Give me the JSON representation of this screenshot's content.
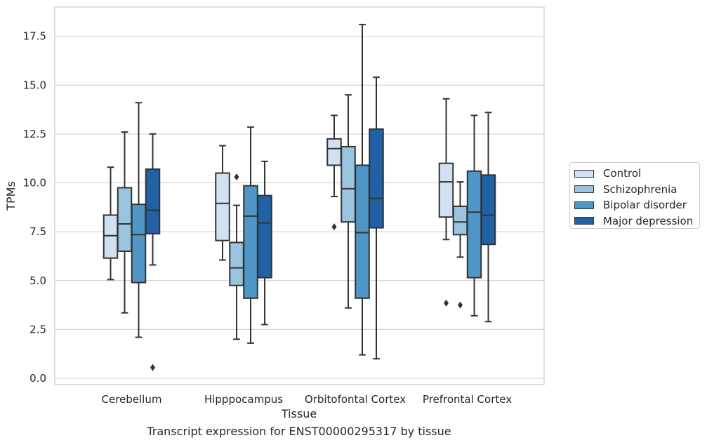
{
  "chart_data": {
    "type": "box",
    "xlabel": "Tissue",
    "ylabel": "TPMs",
    "caption": "Transcript expression for ENST00000295317 by tissue",
    "ylim": [
      -0.3,
      19.0
    ],
    "yticks": [
      0.0,
      2.5,
      5.0,
      7.5,
      10.0,
      12.5,
      15.0,
      17.5
    ],
    "ytick_labels": [
      "0.0",
      "2.5",
      "5.0",
      "7.5",
      "10.0",
      "12.5",
      "15.0",
      "17.5"
    ],
    "grid": "horizontal",
    "legend_position": "right",
    "categories": [
      "Cerebellum",
      "Hipppocampus",
      "Orbitofontal Cortex",
      "Prefrontal Cortex"
    ],
    "series": [
      {
        "name": "Control",
        "color": "#d1e1f1",
        "boxes": [
          {
            "whisker_low": 5.05,
            "q1": 6.15,
            "median": 7.3,
            "q3": 8.35,
            "whisker_high": 10.8,
            "outliers": []
          },
          {
            "whisker_low": 6.05,
            "q1": 7.05,
            "median": 8.95,
            "q3": 10.5,
            "whisker_high": 11.9,
            "outliers": []
          },
          {
            "whisker_low": 9.3,
            "q1": 10.9,
            "median": 11.75,
            "q3": 12.25,
            "whisker_high": 13.45,
            "outliers": [
              7.75
            ]
          },
          {
            "whisker_low": 7.1,
            "q1": 8.25,
            "median": 10.05,
            "q3": 11.0,
            "whisker_high": 14.3,
            "outliers": [
              3.85
            ]
          }
        ]
      },
      {
        "name": "Schizophrenia",
        "color": "#9bc4de",
        "boxes": [
          {
            "whisker_low": 3.35,
            "q1": 6.5,
            "median": 7.9,
            "q3": 9.75,
            "whisker_high": 12.6,
            "outliers": []
          },
          {
            "whisker_low": 2.0,
            "q1": 4.75,
            "median": 5.65,
            "q3": 6.95,
            "whisker_high": 8.85,
            "outliers": [
              10.3
            ]
          },
          {
            "whisker_low": 3.6,
            "q1": 8.0,
            "median": 9.7,
            "q3": 11.85,
            "whisker_high": 14.5,
            "outliers": []
          },
          {
            "whisker_low": 6.2,
            "q1": 7.35,
            "median": 8.0,
            "q3": 8.8,
            "whisker_high": 10.05,
            "outliers": [
              3.75
            ]
          }
        ]
      },
      {
        "name": "Bipolar disorder",
        "color": "#5096c6",
        "boxes": [
          {
            "whisker_low": 2.1,
            "q1": 4.9,
            "median": 7.35,
            "q3": 8.9,
            "whisker_high": 14.1,
            "outliers": []
          },
          {
            "whisker_low": 1.8,
            "q1": 4.1,
            "median": 8.3,
            "q3": 9.85,
            "whisker_high": 12.85,
            "outliers": []
          },
          {
            "whisker_low": 1.2,
            "q1": 4.1,
            "median": 7.45,
            "q3": 10.9,
            "whisker_high": 18.1,
            "outliers": []
          },
          {
            "whisker_low": 3.2,
            "q1": 5.15,
            "median": 8.5,
            "q3": 10.6,
            "whisker_high": 13.45,
            "outliers": []
          }
        ]
      },
      {
        "name": "Major depression",
        "color": "#2161a5",
        "boxes": [
          {
            "whisker_low": 5.8,
            "q1": 7.4,
            "median": 8.6,
            "q3": 10.7,
            "whisker_high": 12.5,
            "outliers": [
              0.55
            ]
          },
          {
            "whisker_low": 2.75,
            "q1": 5.15,
            "median": 7.95,
            "q3": 9.35,
            "whisker_high": 11.1,
            "outliers": []
          },
          {
            "whisker_low": 1.0,
            "q1": 7.7,
            "median": 9.2,
            "q3": 12.75,
            "whisker_high": 15.4,
            "outliers": []
          },
          {
            "whisker_low": 2.9,
            "q1": 6.85,
            "median": 8.35,
            "q3": 10.4,
            "whisker_high": 13.6,
            "outliers": []
          }
        ]
      }
    ]
  }
}
